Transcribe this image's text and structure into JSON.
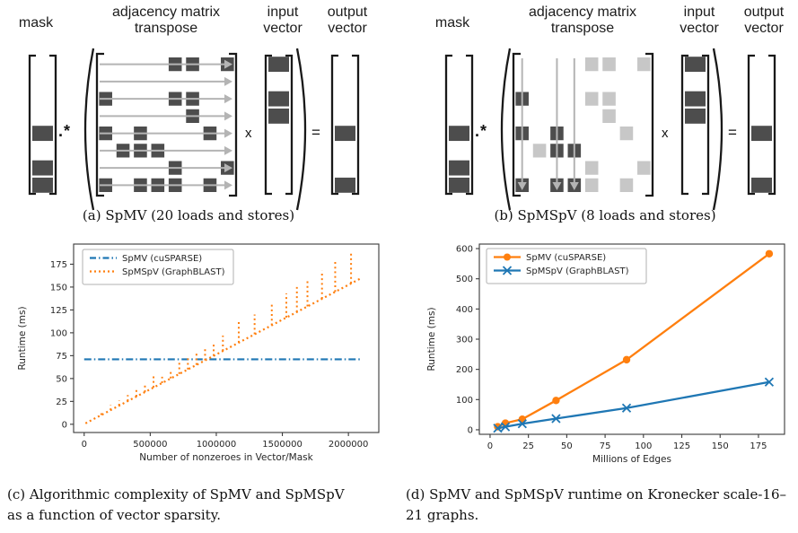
{
  "figure": {
    "panel_a": {
      "labels": {
        "mask": "mask",
        "matrix": "adjacency matrix\ntranspose",
        "input": "input\nvector",
        "output": "output\nvector"
      },
      "operators": {
        "elementwise": ".*",
        "multiply": "x",
        "equals": "="
      },
      "caption": "(a) SpMV (20 loads and stores)",
      "mask_rows": [
        4,
        6,
        7
      ],
      "input_rows": [
        0,
        2,
        3
      ],
      "output_rows": [
        4,
        7
      ],
      "matrix_cells": [
        [
          4,
          5,
          7
        ],
        [],
        [
          0,
          4,
          5
        ],
        [
          5
        ],
        [
          0,
          2,
          6
        ],
        [
          1,
          2,
          3
        ],
        [
          4,
          7
        ],
        [
          0,
          2,
          3,
          4,
          6
        ]
      ],
      "arrow_mode": "rows"
    },
    "panel_b": {
      "labels": {
        "mask": "mask",
        "matrix": "adjacency matrix\ntranspose",
        "input": "input\nvector",
        "output": "output\nvector"
      },
      "operators": {
        "elementwise": ".*",
        "multiply": "x",
        "equals": "="
      },
      "caption": "(b) SpMSpV (8 loads and stores)",
      "mask_rows": [
        4,
        6,
        7
      ],
      "input_rows": [
        0,
        2,
        3
      ],
      "output_rows": [
        4,
        7
      ],
      "matrix_cells": [
        [
          4,
          5,
          7
        ],
        [],
        [
          0,
          4,
          5
        ],
        [
          5
        ],
        [
          0,
          2,
          6
        ],
        [
          1,
          2,
          3
        ],
        [
          4,
          7
        ],
        [
          0,
          2,
          3,
          4,
          6
        ]
      ],
      "arrow_mode": "cols",
      "arrow_cols": [
        0,
        2,
        3
      ],
      "dark_cols": [
        0,
        2,
        3
      ]
    },
    "caption_c": "(c) Algorithmic complexity of SpMV and SpMSpV as a function of vector sparsity.",
    "caption_d": "(d) SpMV and SpMSpV runtime on Kronecker scale-16–21 graphs."
  },
  "colors": {
    "dark_cell": "#4d4d4d",
    "light_cell": "#c7c7c7",
    "arrow": "#b4b4b4",
    "ink": "#191919",
    "axis": "#3a3a3a",
    "text": "#262626",
    "blue": "#1f77b4",
    "orange": "#ff7f0e"
  },
  "chart_data": [
    {
      "id": "c",
      "type": "line",
      "title": "",
      "xlabel": "Number of nonzeroes in Vector/Mask",
      "ylabel": "Runtime (ms)",
      "xlim": [
        -80000,
        2230000
      ],
      "ylim": [
        -9,
        197
      ],
      "xticks": [
        0,
        500000,
        1000000,
        1500000,
        2000000
      ],
      "xtick_labels": [
        "0",
        "500000",
        "1000000",
        "1500000",
        "2000000"
      ],
      "yticks": [
        0,
        25,
        50,
        75,
        100,
        125,
        150,
        175
      ],
      "grid": false,
      "legend_position": "upper left",
      "series": [
        {
          "name": "SpMV (cuSPARSE)",
          "color": "#1f77b4",
          "style": "dashdot",
          "points": [
            [
              0,
              71
            ],
            [
              2100000,
              71
            ]
          ]
        },
        {
          "name": "SpMSpV (GraphBLAST)",
          "color": "#ff7f0e",
          "style": "dotted",
          "baseline_points": [
            [
              10000,
              1
            ],
            [
              2100000,
              160
            ]
          ],
          "spikes": [
            [
              130000,
              14
            ],
            [
              200000,
              21
            ],
            [
              265000,
              26
            ],
            [
              330000,
              32
            ],
            [
              395000,
              38
            ],
            [
              460000,
              44
            ],
            [
              525000,
              55
            ],
            [
              590000,
              52
            ],
            [
              655000,
              58
            ],
            [
              720000,
              68
            ],
            [
              785000,
              72
            ],
            [
              850000,
              79
            ],
            [
              915000,
              85
            ],
            [
              980000,
              88
            ],
            [
              1050000,
              97
            ],
            [
              1170000,
              113
            ],
            [
              1290000,
              120
            ],
            [
              1420000,
              132
            ],
            [
              1530000,
              143
            ],
            [
              1610000,
              150
            ],
            [
              1690000,
              158
            ],
            [
              1800000,
              168
            ],
            [
              1900000,
              178
            ],
            [
              2020000,
              189
            ]
          ]
        }
      ]
    },
    {
      "id": "d",
      "type": "line",
      "title": "",
      "xlabel": "Millions of Edges",
      "ylabel": "Runtime (ms)",
      "xlim": [
        -7,
        192
      ],
      "ylim": [
        -15,
        615
      ],
      "xticks": [
        0,
        25,
        50,
        75,
        100,
        125,
        150,
        175
      ],
      "xtick_labels": [
        "0",
        "25",
        "50",
        "75",
        "100",
        "125",
        "150",
        "175"
      ],
      "yticks": [
        0,
        100,
        200,
        300,
        400,
        500,
        600
      ],
      "grid": false,
      "legend_position": "upper left",
      "series": [
        {
          "name": "SpMV (cuSPARSE)",
          "color": "#ff7f0e",
          "marker": "circle",
          "points": [
            [
              5,
              10
            ],
            [
              10,
              22
            ],
            [
              21,
              35
            ],
            [
              43,
              97
            ],
            [
              89,
              232
            ],
            [
              182,
              583
            ]
          ]
        },
        {
          "name": "SpMSpV (GraphBLAST)",
          "color": "#1f77b4",
          "marker": "x",
          "points": [
            [
              5,
              5
            ],
            [
              10,
              10
            ],
            [
              21,
              20
            ],
            [
              43,
              37
            ],
            [
              89,
              72
            ],
            [
              182,
              158
            ]
          ]
        }
      ]
    }
  ]
}
